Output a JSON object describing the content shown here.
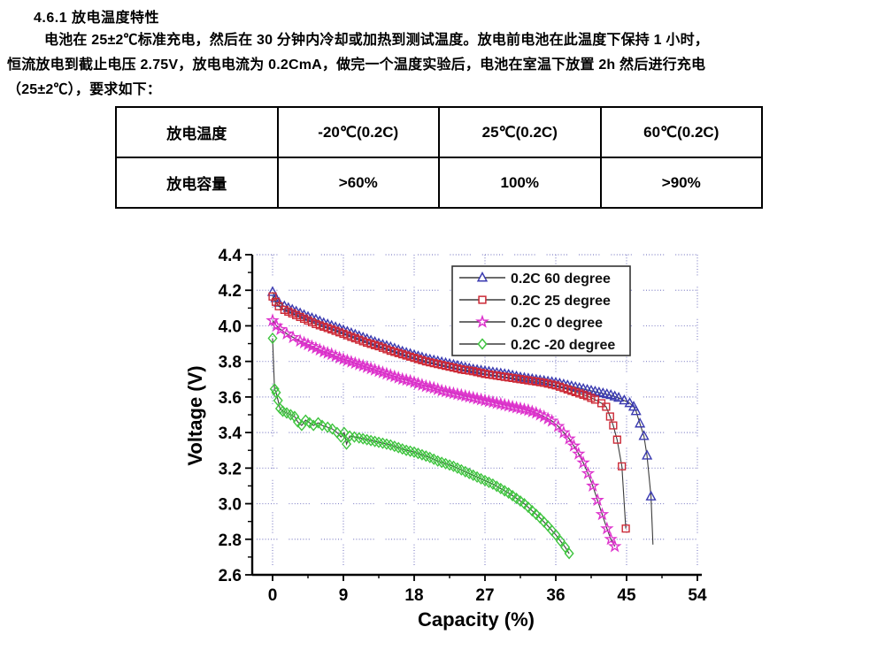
{
  "document": {
    "heading": "4.6.1  放电温度特性",
    "paragraph_lines": [
      "电池在 25±2℃标准充电，然后在 30 分钟内冷却或加热到测试温度。放电前电池在此温度下保持 1 小时，",
      "恒流放电到截止电压 2.75V，放电电流为 0.2CmA，做完一个温度实验后，电池在室温下放置 2h 然后进行充电",
      "（25±2℃），要求如下："
    ]
  },
  "table": {
    "rows": [
      [
        "放电温度",
        "-20℃(0.2C)",
        "25℃(0.2C)",
        "60℃(0.2C)"
      ],
      [
        "放电容量",
        ">60%",
        "100%",
        ">90%"
      ]
    ]
  },
  "chart_data": {
    "type": "line",
    "title": "",
    "xlabel": "Capacity (%)",
    "ylabel": "Voltage (V)",
    "xlim": [
      0,
      54
    ],
    "ylim": [
      2.6,
      4.4
    ],
    "x_ticks": [
      0,
      9,
      18,
      27,
      36,
      45,
      54
    ],
    "y_ticks": [
      2.6,
      2.8,
      3.0,
      3.2,
      3.4,
      3.6,
      3.8,
      4.0,
      4.2,
      4.4
    ],
    "x_minor_step": 4.5,
    "y_minor_step": 0.1,
    "grid": true,
    "grid_color": "#8585c8",
    "axis_color": "#000000",
    "line_color": "#3c3c3c",
    "legend_position": "upper right",
    "series": [
      {
        "name": "0.2C  60 degree",
        "marker": "triangle",
        "color": "#3a3ab0",
        "points": [
          [
            0,
            4.19
          ],
          [
            0.4,
            4.155
          ],
          [
            0.8,
            4.13
          ],
          [
            1.5,
            4.11
          ],
          [
            2.5,
            4.09
          ],
          [
            3.5,
            4.07
          ],
          [
            4.5,
            4.05
          ],
          [
            5.5,
            4.035
          ],
          [
            6.5,
            4.015
          ],
          [
            7.5,
            4.0
          ],
          [
            9,
            3.975
          ],
          [
            10.5,
            3.95
          ],
          [
            12,
            3.925
          ],
          [
            13.5,
            3.9
          ],
          [
            15,
            3.88
          ],
          [
            16.5,
            3.855
          ],
          [
            18,
            3.835
          ],
          [
            19.5,
            3.815
          ],
          [
            21,
            3.8
          ],
          [
            22.5,
            3.785
          ],
          [
            24,
            3.77
          ],
          [
            25.5,
            3.755
          ],
          [
            27,
            3.745
          ],
          [
            28.5,
            3.735
          ],
          [
            30,
            3.725
          ],
          [
            31.5,
            3.71
          ],
          [
            33,
            3.7
          ],
          [
            34.5,
            3.69
          ],
          [
            36,
            3.68
          ],
          [
            37.5,
            3.665
          ],
          [
            39,
            3.65
          ],
          [
            40.5,
            3.635
          ],
          [
            42,
            3.62
          ],
          [
            43,
            3.61
          ],
          [
            44,
            3.595
          ],
          [
            44.7,
            3.58
          ],
          [
            45.4,
            3.565
          ],
          [
            45.9,
            3.545
          ],
          [
            46.2,
            3.52
          ],
          [
            46.7,
            3.45
          ],
          [
            47.2,
            3.38
          ],
          [
            47.6,
            3.27
          ],
          [
            48.1,
            3.04
          ]
        ],
        "tail": [
          [
            48.35,
            2.77
          ]
        ]
      },
      {
        "name": "0.2C  25 degree",
        "marker": "square",
        "color": "#cc2936",
        "points": [
          [
            0,
            4.165
          ],
          [
            0.4,
            4.135
          ],
          [
            0.8,
            4.11
          ],
          [
            1.5,
            4.09
          ],
          [
            2.5,
            4.07
          ],
          [
            3.5,
            4.05
          ],
          [
            4.5,
            4.03
          ],
          [
            5.5,
            4.01
          ],
          [
            6.5,
            3.995
          ],
          [
            7.5,
            3.98
          ],
          [
            9,
            3.955
          ],
          [
            10.5,
            3.93
          ],
          [
            12,
            3.905
          ],
          [
            13.5,
            3.885
          ],
          [
            15,
            3.86
          ],
          [
            16.5,
            3.84
          ],
          [
            18,
            3.82
          ],
          [
            19.5,
            3.8
          ],
          [
            21,
            3.785
          ],
          [
            22.5,
            3.77
          ],
          [
            24,
            3.755
          ],
          [
            25.5,
            3.745
          ],
          [
            27,
            3.73
          ],
          [
            28.5,
            3.72
          ],
          [
            30,
            3.71
          ],
          [
            31.5,
            3.7
          ],
          [
            33,
            3.69
          ],
          [
            34.5,
            3.68
          ],
          [
            36,
            3.665
          ],
          [
            37,
            3.65
          ],
          [
            38,
            3.635
          ],
          [
            39,
            3.62
          ],
          [
            40,
            3.605
          ],
          [
            41,
            3.585
          ],
          [
            41.8,
            3.565
          ],
          [
            42.4,
            3.545
          ],
          [
            42.9,
            3.49
          ],
          [
            43.3,
            3.44
          ],
          [
            43.8,
            3.36
          ],
          [
            44.4,
            3.21
          ],
          [
            44.9,
            2.86
          ]
        ],
        "tail": []
      },
      {
        "name": "0.2C  0  degree",
        "marker": "star",
        "color": "#dd33cc",
        "points": [
          [
            0,
            4.03
          ],
          [
            0.5,
            4.0
          ],
          [
            1,
            3.98
          ],
          [
            1.8,
            3.955
          ],
          [
            2.6,
            3.935
          ],
          [
            3.5,
            3.915
          ],
          [
            4.5,
            3.895
          ],
          [
            5.5,
            3.875
          ],
          [
            6.5,
            3.855
          ],
          [
            7.5,
            3.84
          ],
          [
            8.5,
            3.82
          ],
          [
            9.5,
            3.805
          ],
          [
            10.5,
            3.79
          ],
          [
            11.5,
            3.775
          ],
          [
            12.5,
            3.76
          ],
          [
            13.5,
            3.745
          ],
          [
            14.5,
            3.73
          ],
          [
            15.5,
            3.715
          ],
          [
            16.5,
            3.7
          ],
          [
            17.5,
            3.69
          ],
          [
            18.5,
            3.675
          ],
          [
            19.5,
            3.66
          ],
          [
            20.5,
            3.65
          ],
          [
            21.5,
            3.635
          ],
          [
            22.5,
            3.625
          ],
          [
            23.5,
            3.615
          ],
          [
            24.5,
            3.605
          ],
          [
            25.5,
            3.595
          ],
          [
            26.5,
            3.585
          ],
          [
            27.5,
            3.575
          ],
          [
            28.5,
            3.565
          ],
          [
            29.5,
            3.555
          ],
          [
            30.5,
            3.545
          ],
          [
            31.5,
            3.535
          ],
          [
            32.5,
            3.525
          ],
          [
            33.5,
            3.51
          ],
          [
            34.5,
            3.49
          ],
          [
            35.5,
            3.465
          ],
          [
            36.3,
            3.435
          ],
          [
            37,
            3.4
          ],
          [
            37.7,
            3.365
          ],
          [
            38.3,
            3.325
          ],
          [
            38.9,
            3.28
          ],
          [
            39.5,
            3.23
          ],
          [
            40.1,
            3.17
          ],
          [
            40.7,
            3.1
          ],
          [
            41.3,
            3.02
          ],
          [
            41.9,
            2.94
          ],
          [
            42.5,
            2.86
          ],
          [
            43,
            2.8
          ],
          [
            43.5,
            2.76
          ]
        ],
        "tail": []
      },
      {
        "name": "0.2C -20 degree",
        "marker": "diamond",
        "color": "#3fc43f",
        "points": [
          [
            0,
            3.93
          ],
          [
            0.25,
            3.645
          ],
          [
            0.45,
            3.625
          ],
          [
            0.7,
            3.58
          ],
          [
            0.95,
            3.535
          ],
          [
            1.3,
            3.52
          ],
          [
            1.8,
            3.51
          ],
          [
            2.3,
            3.5
          ],
          [
            2.8,
            3.49
          ],
          [
            3.2,
            3.46
          ],
          [
            3.7,
            3.44
          ],
          [
            4.2,
            3.47
          ],
          [
            4.7,
            3.455
          ],
          [
            5.2,
            3.44
          ],
          [
            5.8,
            3.455
          ],
          [
            6.3,
            3.44
          ],
          [
            7,
            3.43
          ],
          [
            7.6,
            3.42
          ],
          [
            8.2,
            3.4
          ],
          [
            8.7,
            3.375
          ],
          [
            9.1,
            3.4
          ],
          [
            9.4,
            3.335
          ],
          [
            9.8,
            3.38
          ],
          [
            10.4,
            3.375
          ],
          [
            11,
            3.37
          ],
          [
            12,
            3.36
          ],
          [
            13,
            3.35
          ],
          [
            14,
            3.34
          ],
          [
            15,
            3.33
          ],
          [
            16,
            3.315
          ],
          [
            17,
            3.3
          ],
          [
            18,
            3.29
          ],
          [
            19,
            3.275
          ],
          [
            20,
            3.26
          ],
          [
            21,
            3.24
          ],
          [
            22,
            3.225
          ],
          [
            23,
            3.21
          ],
          [
            24,
            3.19
          ],
          [
            25,
            3.17
          ],
          [
            26,
            3.15
          ],
          [
            27,
            3.13
          ],
          [
            28,
            3.11
          ],
          [
            29,
            3.085
          ],
          [
            30,
            3.06
          ],
          [
            31,
            3.03
          ],
          [
            32,
            3.0
          ],
          [
            33,
            2.96
          ],
          [
            34,
            2.92
          ],
          [
            35,
            2.875
          ],
          [
            36,
            2.825
          ],
          [
            36.6,
            2.79
          ],
          [
            37.2,
            2.755
          ],
          [
            37.7,
            2.72
          ]
        ],
        "tail": []
      }
    ]
  }
}
